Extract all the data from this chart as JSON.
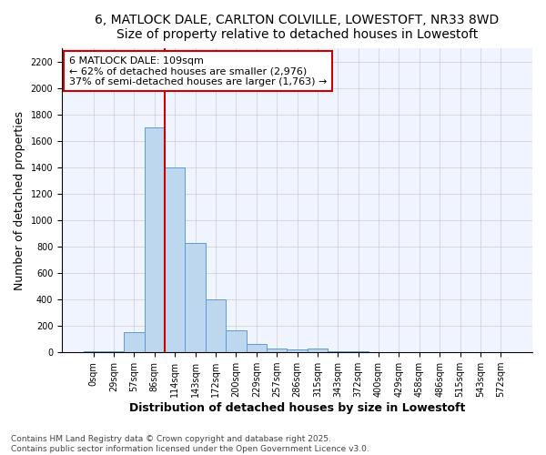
{
  "title_line1": "6, MATLOCK DALE, CARLTON COLVILLE, LOWESTOFT, NR33 8WD",
  "title_line2": "Size of property relative to detached houses in Lowestoft",
  "xlabel": "Distribution of detached houses by size in Lowestoft",
  "ylabel": "Number of detached properties",
  "categories": [
    "0sqm",
    "29sqm",
    "57sqm",
    "86sqm",
    "114sqm",
    "143sqm",
    "172sqm",
    "200sqm",
    "229sqm",
    "257sqm",
    "286sqm",
    "315sqm",
    "343sqm",
    "372sqm",
    "400sqm",
    "429sqm",
    "458sqm",
    "486sqm",
    "515sqm",
    "543sqm",
    "572sqm"
  ],
  "values": [
    5,
    5,
    155,
    1700,
    1400,
    830,
    400,
    165,
    65,
    30,
    20,
    30,
    5,
    5,
    3,
    2,
    2,
    2,
    1,
    1,
    1
  ],
  "bar_color": "#BDD7EE",
  "bar_edge_color": "#5B9BD5",
  "vline_color": "#CC0000",
  "annotation_text": "6 MATLOCK DALE: 109sqm\n← 62% of detached houses are smaller (2,976)\n37% of semi-detached houses are larger (1,763) →",
  "annotation_box_color": "#FFFFFF",
  "annotation_box_edge": "#CC0000",
  "ylim": [
    0,
    2300
  ],
  "yticks": [
    0,
    200,
    400,
    600,
    800,
    1000,
    1200,
    1400,
    1600,
    1800,
    2000,
    2200
  ],
  "footer_line1": "Contains HM Land Registry data © Crown copyright and database right 2025.",
  "footer_line2": "Contains public sector information licensed under the Open Government Licence v3.0.",
  "bg_color": "#FFFFFF",
  "plot_bg_color": "#F0F4FF",
  "title_fontsize": 10,
  "subtitle_fontsize": 9,
  "axis_label_fontsize": 9,
  "tick_fontsize": 7,
  "footer_fontsize": 6.5,
  "annotation_fontsize": 8
}
